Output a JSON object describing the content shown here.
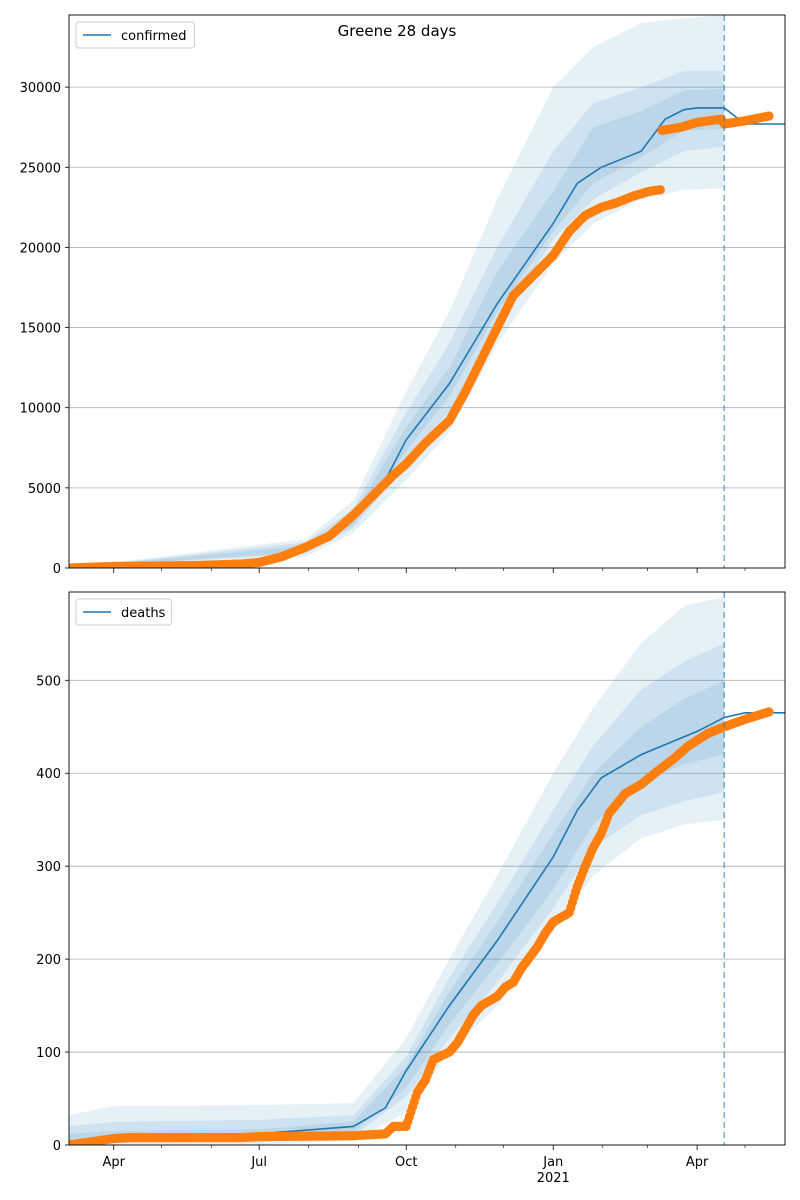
{
  "figure_title": "Greene 28 days",
  "colors": {
    "model": "#1f77b4",
    "observed": "#ff7f0e",
    "band": "#1f77b4",
    "grid": "#b0b0b0",
    "axis": "#000000"
  },
  "x_axis": {
    "range_days": [
      -28,
      420
    ],
    "ticks": [
      {
        "day": 0,
        "label": "Apr"
      },
      {
        "day": 91,
        "label": "Jul"
      },
      {
        "day": 183,
        "label": "Oct"
      },
      {
        "day": 275,
        "label": "Jan",
        "sublabel": "2021"
      },
      {
        "day": 365,
        "label": "Apr"
      }
    ],
    "minor_tick_days": [
      30,
      61,
      122,
      153,
      214,
      244,
      306,
      334,
      395
    ],
    "forecast_start_day": 382
  },
  "chart_data": [
    {
      "type": "line",
      "name": "confirmed",
      "legend": "confirmed",
      "legend_position": "top-left",
      "grid": true,
      "ylim": [
        0,
        34500
      ],
      "yticks": [
        0,
        5000,
        10000,
        15000,
        20000,
        25000,
        30000
      ],
      "x_unit": "days since 2020-04-01",
      "median": {
        "x": [
          -28,
          60,
          91,
          120,
          150,
          170,
          183,
          210,
          240,
          275,
          290,
          305,
          330,
          345,
          357,
          365,
          382,
          395,
          420
        ],
        "y": [
          0,
          150,
          300,
          1200,
          3000,
          5500,
          8000,
          11500,
          16500,
          21500,
          24000,
          25000,
          26000,
          28000,
          28600,
          28700,
          28700,
          27700,
          27700
        ]
      },
      "bands": [
        {
          "name": "outer",
          "x": [
            -28,
            120,
            150,
            183,
            210,
            240,
            275,
            300,
            330,
            357,
            382
          ],
          "low": [
            0,
            700,
            2200,
            5500,
            8500,
            14000,
            19000,
            21500,
            23000,
            23600,
            23700
          ],
          "high": [
            0,
            1800,
            4200,
            11000,
            16000,
            23000,
            30000,
            32500,
            34000,
            34300,
            34500
          ]
        },
        {
          "name": "middle",
          "x": [
            -28,
            120,
            150,
            183,
            210,
            240,
            275,
            300,
            330,
            357,
            382
          ],
          "low": [
            0,
            900,
            2500,
            6500,
            9800,
            15000,
            20500,
            23000,
            24700,
            26000,
            26300
          ],
          "high": [
            0,
            1600,
            3700,
            9700,
            14000,
            20000,
            26000,
            29000,
            30000,
            31000,
            31000
          ]
        },
        {
          "name": "inner",
          "x": [
            -28,
            120,
            150,
            183,
            210,
            240,
            275,
            300,
            330,
            357,
            382
          ],
          "low": [
            0,
            1000,
            2700,
            7300,
            10700,
            16000,
            21000,
            24000,
            25600,
            27300,
            27400
          ],
          "high": [
            0,
            1400,
            3300,
            8800,
            12500,
            18500,
            23500,
            27500,
            28500,
            29800,
            29900
          ]
        }
      ],
      "observed": {
        "x": [
          -28,
          0,
          50,
          80,
          91,
          105,
          120,
          135,
          150,
          165,
          175,
          183,
          195,
          210,
          220,
          230,
          240,
          250,
          260,
          275,
          285,
          295,
          305,
          315,
          325,
          335,
          342,
          343,
          355,
          365,
          380,
          382,
          395,
          410
        ],
        "y": [
          0,
          100,
          150,
          250,
          350,
          700,
          1300,
          2000,
          3300,
          4800,
          5800,
          6500,
          7800,
          9200,
          11000,
          13000,
          15000,
          17000,
          18000,
          19500,
          21000,
          22000,
          22500,
          22800,
          23200,
          23500,
          23600,
          27300,
          27500,
          27800,
          28000,
          27700,
          27900,
          28200
        ]
      }
    },
    {
      "type": "line",
      "name": "deaths",
      "legend": "deaths",
      "legend_position": "top-left",
      "grid": true,
      "ylim": [
        0,
        595
      ],
      "yticks": [
        0,
        100,
        200,
        300,
        400,
        500
      ],
      "x_unit": "days since 2020-04-01",
      "median": {
        "x": [
          -28,
          0,
          91,
          150,
          170,
          183,
          210,
          240,
          275,
          290,
          305,
          330,
          365,
          382,
          395,
          420
        ],
        "y": [
          0,
          8,
          12,
          20,
          40,
          80,
          150,
          220,
          310,
          360,
          395,
          420,
          445,
          460,
          465,
          465
        ]
      },
      "bands": [
        {
          "name": "outer",
          "x": [
            -28,
            0,
            91,
            150,
            183,
            210,
            240,
            275,
            300,
            330,
            357,
            382
          ],
          "low": [
            0,
            0,
            0,
            5,
            35,
            100,
            150,
            230,
            290,
            330,
            345,
            350
          ],
          "high": [
            32,
            42,
            43,
            45,
            115,
            200,
            290,
            400,
            470,
            540,
            580,
            590
          ]
        },
        {
          "name": "middle",
          "x": [
            -28,
            0,
            91,
            150,
            183,
            210,
            240,
            275,
            300,
            330,
            357,
            382
          ],
          "low": [
            0,
            2,
            3,
            10,
            52,
            115,
            175,
            255,
            320,
            355,
            370,
            380
          ],
          "high": [
            20,
            25,
            27,
            32,
            95,
            180,
            260,
            360,
            430,
            490,
            520,
            540
          ]
        },
        {
          "name": "inner",
          "x": [
            -28,
            0,
            91,
            150,
            183,
            210,
            240,
            275,
            300,
            330,
            357,
            382
          ],
          "low": [
            0,
            4,
            6,
            14,
            62,
            130,
            195,
            275,
            345,
            390,
            410,
            420
          ],
          "high": [
            12,
            15,
            17,
            25,
            85,
            165,
            240,
            335,
            400,
            450,
            480,
            500
          ]
        }
      ],
      "observed": {
        "x": [
          -28,
          0,
          10,
          50,
          80,
          91,
          150,
          170,
          175,
          183,
          190,
          195,
          200,
          210,
          215,
          220,
          225,
          230,
          240,
          245,
          250,
          255,
          265,
          270,
          275,
          285,
          290,
          295,
          300,
          305,
          310,
          320,
          330,
          340,
          350,
          360,
          372,
          382,
          395,
          410
        ],
        "y": [
          0,
          7,
          8,
          8,
          8,
          9,
          10,
          12,
          20,
          20,
          57,
          70,
          92,
          100,
          110,
          125,
          140,
          150,
          160,
          170,
          175,
          190,
          213,
          228,
          240,
          250,
          278,
          300,
          320,
          335,
          357,
          378,
          388,
          402,
          415,
          430,
          443,
          450,
          458,
          466
        ]
      }
    }
  ]
}
